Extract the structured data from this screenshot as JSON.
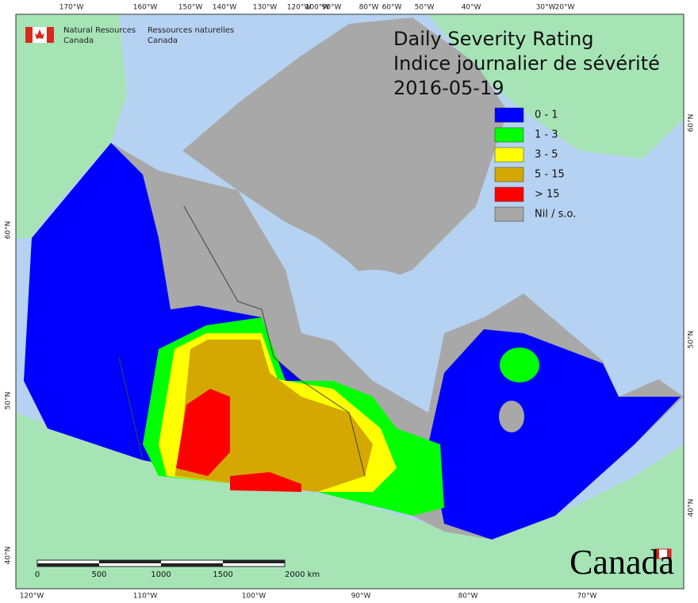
{
  "map": {
    "title": [
      "Daily Severity Rating",
      "Indice journalier de sévérité",
      "2016-05-19"
    ],
    "agency": {
      "en": [
        "Natural Resources",
        "Canada"
      ],
      "fr": [
        "Ressources naturelles",
        "Canada"
      ]
    },
    "legend": [
      {
        "label": "0 - 1",
        "color": "#0000ff"
      },
      {
        "label": "1 - 3",
        "color": "#00ff00"
      },
      {
        "label": "3 - 5",
        "color": "#ffff00"
      },
      {
        "label": "5 - 15",
        "color": "#d4a800"
      },
      {
        "label": "> 15",
        "color": "#ff0000"
      },
      {
        "label": "Nil / s.o.",
        "color": "#a8a8a8"
      }
    ],
    "graticule": {
      "top": [
        "170°W",
        "160°W",
        "150°W",
        "140°W",
        "130°W",
        "120°W",
        "100°W",
        "90°W",
        "80°W",
        "60°W",
        "50°W",
        "40°W",
        "30°W",
        "20°W"
      ],
      "bottom": [
        "120°W",
        "110°W",
        "100°W",
        "90°W",
        "80°W",
        "70°W"
      ],
      "left": [
        "60°N",
        "50°N",
        "40°N"
      ],
      "right": [
        "60°N",
        "50°N",
        "40°N"
      ]
    },
    "scale_bar": [
      "0",
      "500",
      "1000",
      "1500",
      "2000 km"
    ],
    "wordmark": "Canada"
  }
}
